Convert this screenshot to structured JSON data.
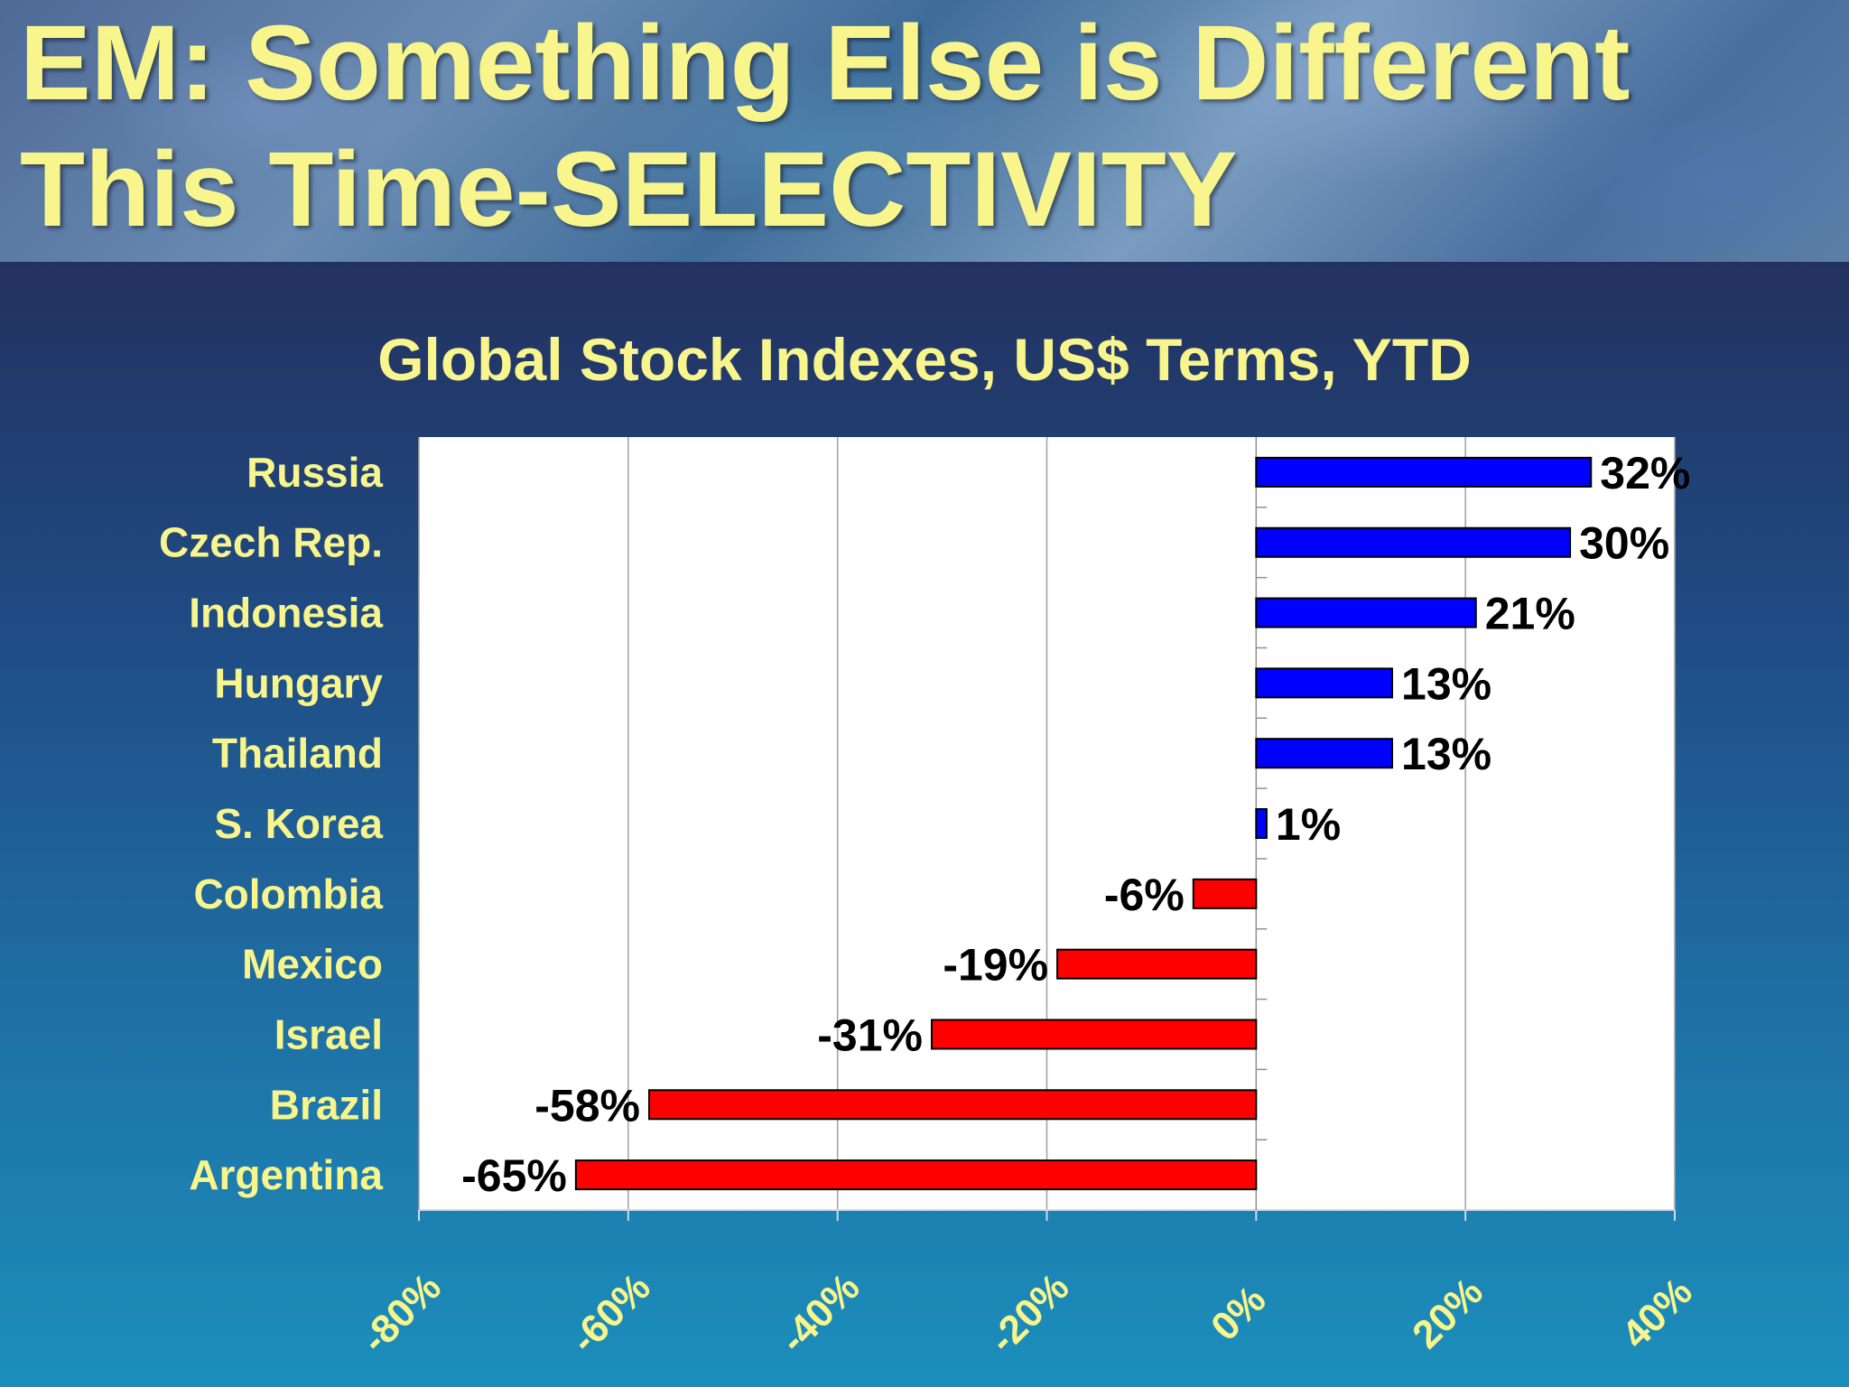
{
  "slide": {
    "title_line1": "EM: Something Else is Different",
    "title_line2": "This Time-SELECTIVITY"
  },
  "chart_data": {
    "type": "bar",
    "orientation": "horizontal",
    "title": "Global Stock Indexes, US$ Terms, YTD",
    "categories": [
      "Russia",
      "Czech Rep.",
      "Indonesia",
      "Hungary",
      "Thailand",
      "S. Korea",
      "Colombia",
      "Mexico",
      "Israel",
      "Brazil",
      "Argentina"
    ],
    "values": [
      32,
      30,
      21,
      13,
      13,
      1,
      -6,
      -19,
      -31,
      -58,
      -65
    ],
    "value_labels": [
      "32%",
      "30%",
      "21%",
      "13%",
      "13%",
      "1%",
      "-6%",
      "-19%",
      "-31%",
      "-58%",
      "-65%"
    ],
    "xlim": [
      -80,
      40
    ],
    "x_ticks": [
      -80,
      -60,
      -40,
      -20,
      0,
      20,
      40
    ],
    "x_tick_labels": [
      "-80%",
      "-60%",
      "-40%",
      "-20%",
      "0%",
      "20%",
      "40%"
    ],
    "grid": "vertical",
    "colors": {
      "positive": "#0000ff",
      "negative": "#ff0000",
      "text": "#f7f58c",
      "plot_bg": "#ffffff"
    }
  }
}
